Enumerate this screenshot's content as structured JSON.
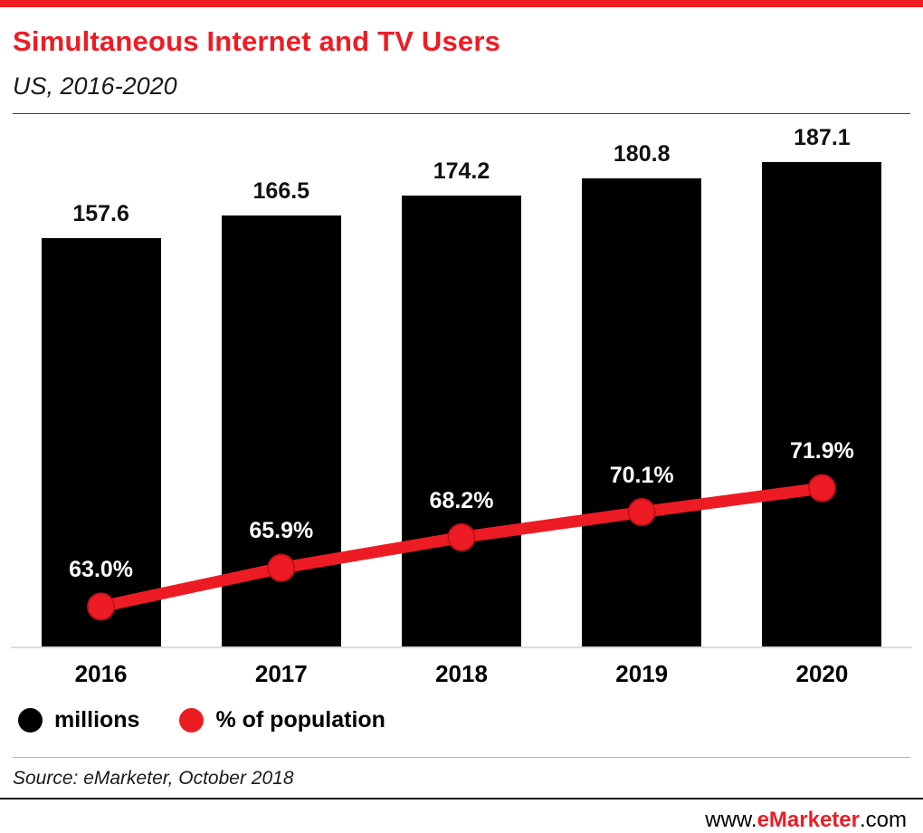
{
  "header": {
    "title": "Simultaneous Internet and TV Users",
    "subtitle": "US, 2016-2020"
  },
  "chart_data": {
    "type": "bar",
    "title": "Simultaneous Internet and TV Users",
    "subtitle": "US, 2016-2020",
    "categories": [
      "2016",
      "2017",
      "2018",
      "2019",
      "2020"
    ],
    "series": [
      {
        "name": "millions",
        "type": "bar",
        "color": "#000000",
        "values": [
          157.6,
          166.5,
          174.2,
          180.8,
          187.1
        ]
      },
      {
        "name": "% of population",
        "type": "line",
        "color": "#ed1c24",
        "values": [
          63.0,
          65.9,
          68.2,
          70.1,
          71.9
        ]
      }
    ],
    "legend": [
      {
        "label": "millions",
        "color": "#000000"
      },
      {
        "label": "% of population",
        "color": "#ed1c24"
      }
    ],
    "legend_position": "bottom-left",
    "grid": false,
    "xlabel": "",
    "ylabel": "",
    "bar_label_format": "one-decimal",
    "line_label_format": "one-decimal-percent"
  },
  "source": "Source: eMarketer, October 2018",
  "footer": {
    "prefix": "www.",
    "brand": "eMarketer",
    "suffix": ".com"
  },
  "colors": {
    "accent_red": "#ed1c24",
    "bar_black": "#000000",
    "dot_edge": "#c4101c"
  }
}
